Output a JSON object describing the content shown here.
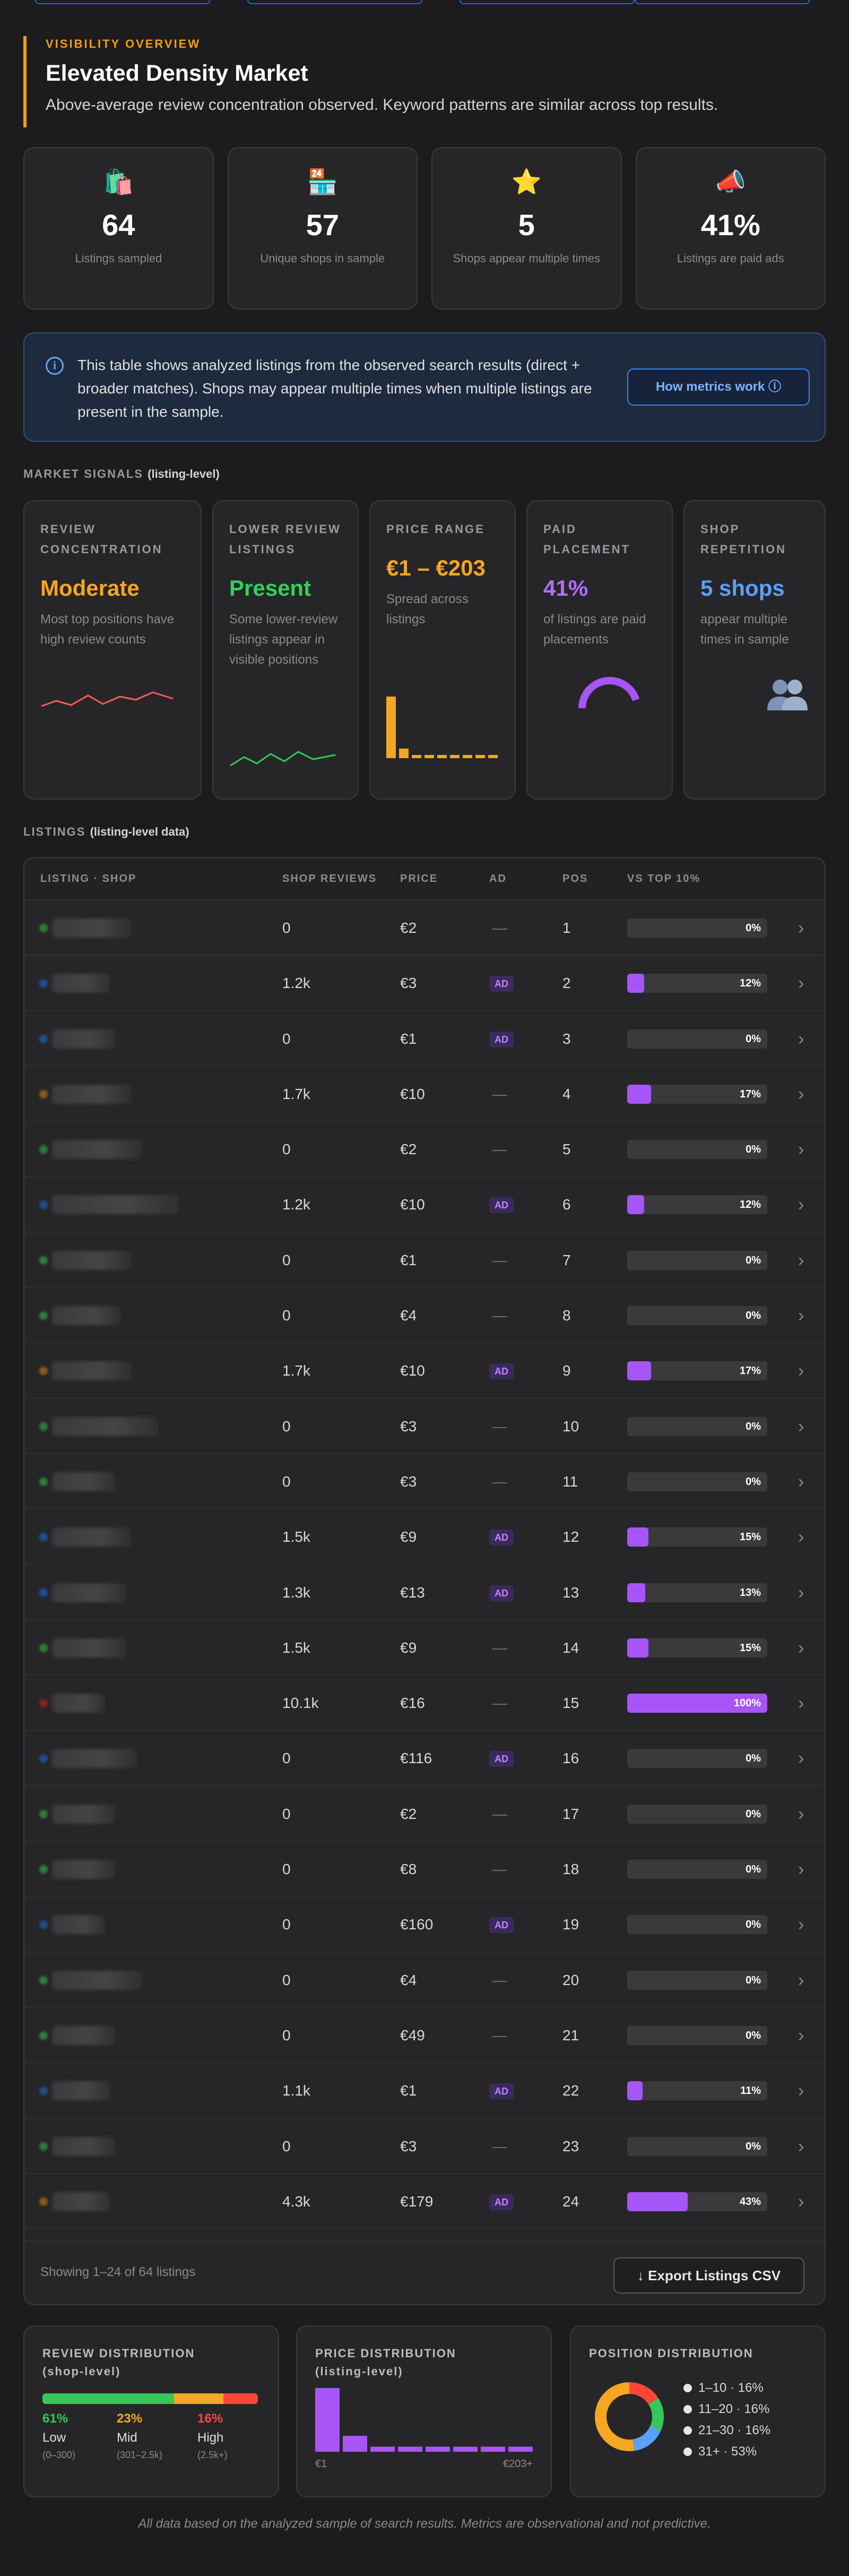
{
  "overview": {
    "kicker": "VISIBILITY OVERVIEW",
    "title": "Elevated Density Market",
    "subtitle": "Above-average review concentration observed. Keyword patterns are similar across top results."
  },
  "stats": [
    {
      "icon": "shopping-bag-icon",
      "glyph": "🛍️",
      "value": "64",
      "label": "Listings sampled"
    },
    {
      "icon": "shop-icon",
      "glyph": "🏪",
      "value": "57",
      "label": "Unique shops in sample"
    },
    {
      "icon": "star-icon",
      "glyph": "⭐",
      "value": "5",
      "label": "Shops appear multiple times"
    },
    {
      "icon": "megaphone-icon",
      "glyph": "📣",
      "value": "41%",
      "label": "Listings are paid ads"
    }
  ],
  "info": {
    "text": "This table shows analyzed listings from the observed search results (direct + broader matches). Shops may appear multiple times when multiple listings are present in the sample.",
    "button": "How metrics work ⓘ"
  },
  "signals_label": {
    "main": "MARKET SIGNALS",
    "sub": "(listing-level)"
  },
  "signals": [
    {
      "title": "REVIEW CONCENTRATION",
      "value": "Moderate",
      "color": "#f5a623",
      "desc": "Most top positions have high review counts",
      "graphic": "red-line"
    },
    {
      "title": "LOWER REVIEW LISTINGS",
      "value": "Present",
      "color": "#34d058",
      "desc": "Some lower-review listings appear in visible positions",
      "graphic": "green-line"
    },
    {
      "title": "PRICE RANGE",
      "value": "€1 – €203",
      "color": "#f5a623",
      "desc": "Spread across listings",
      "graphic": "price-bars"
    },
    {
      "title": "PAID PLACEMENT",
      "value": "41%",
      "color": "#b46cff",
      "desc": "of listings are paid placements",
      "graphic": "gauge",
      "fraction": 0.41
    },
    {
      "title": "SHOP REPETITION",
      "value": "5 shops",
      "color": "#5aa0ff",
      "desc": "appear multiple times in sample",
      "graphic": "people-icon"
    }
  ],
  "listings_label": {
    "main": "LISTINGS",
    "sub": "(listing-level data)"
  },
  "table": {
    "headers": [
      "LISTING · SHOP",
      "SHOP REVIEWS",
      "PRICE",
      "AD",
      "POS",
      "VS TOP 10%"
    ],
    "ad_label": "AD",
    "no_ad": "—",
    "rows": [
      {
        "reviews": "0",
        "price": "€2",
        "ad": false,
        "pos": "1",
        "pct": "0%",
        "frac": 0,
        "dot": "#2e7d32"
      },
      {
        "reviews": "1.2k",
        "price": "€3",
        "ad": true,
        "pos": "2",
        "pct": "12%",
        "frac": 0.12,
        "dot": "#1e4f8f"
      },
      {
        "reviews": "0",
        "price": "€1",
        "ad": true,
        "pos": "3",
        "pct": "0%",
        "frac": 0,
        "dot": "#1e4f8f"
      },
      {
        "reviews": "1.7k",
        "price": "€10",
        "ad": false,
        "pos": "4",
        "pct": "17%",
        "frac": 0.17,
        "dot": "#8a5a1a"
      },
      {
        "reviews": "0",
        "price": "€2",
        "ad": false,
        "pos": "5",
        "pct": "0%",
        "frac": 0,
        "dot": "#2e7d32"
      },
      {
        "reviews": "1.2k",
        "price": "€10",
        "ad": true,
        "pos": "6",
        "pct": "12%",
        "frac": 0.12,
        "dot": "#1e4f8f"
      },
      {
        "reviews": "0",
        "price": "€1",
        "ad": false,
        "pos": "7",
        "pct": "0%",
        "frac": 0,
        "dot": "#2e7d32"
      },
      {
        "reviews": "0",
        "price": "€4",
        "ad": false,
        "pos": "8",
        "pct": "0%",
        "frac": 0,
        "dot": "#2e7d32"
      },
      {
        "reviews": "1.7k",
        "price": "€10",
        "ad": true,
        "pos": "9",
        "pct": "17%",
        "frac": 0.17,
        "dot": "#8a5a1a"
      },
      {
        "reviews": "0",
        "price": "€3",
        "ad": false,
        "pos": "10",
        "pct": "0%",
        "frac": 0,
        "dot": "#2e7d32"
      },
      {
        "reviews": "0",
        "price": "€3",
        "ad": false,
        "pos": "11",
        "pct": "0%",
        "frac": 0,
        "dot": "#2e7d32"
      },
      {
        "reviews": "1.5k",
        "price": "€9",
        "ad": true,
        "pos": "12",
        "pct": "15%",
        "frac": 0.15,
        "dot": "#1e4f8f"
      },
      {
        "reviews": "1.3k",
        "price": "€13",
        "ad": true,
        "pos": "13",
        "pct": "13%",
        "frac": 0.13,
        "dot": "#1e4f8f"
      },
      {
        "reviews": "1.5k",
        "price": "€9",
        "ad": false,
        "pos": "14",
        "pct": "15%",
        "frac": 0.15,
        "dot": "#2e7d32"
      },
      {
        "reviews": "10.1k",
        "price": "€16",
        "ad": false,
        "pos": "15",
        "pct": "100%",
        "frac": 1,
        "dot": "#8b1e1e"
      },
      {
        "reviews": "0",
        "price": "€116",
        "ad": true,
        "pos": "16",
        "pct": "0%",
        "frac": 0,
        "dot": "#1e4f8f"
      },
      {
        "reviews": "0",
        "price": "€2",
        "ad": false,
        "pos": "17",
        "pct": "0%",
        "frac": 0,
        "dot": "#2e7d32"
      },
      {
        "reviews": "0",
        "price": "€8",
        "ad": false,
        "pos": "18",
        "pct": "0%",
        "frac": 0,
        "dot": "#2e7d32"
      },
      {
        "reviews": "0",
        "price": "€160",
        "ad": true,
        "pos": "19",
        "pct": "0%",
        "frac": 0,
        "dot": "#1e4f8f"
      },
      {
        "reviews": "0",
        "price": "€4",
        "ad": false,
        "pos": "20",
        "pct": "0%",
        "frac": 0,
        "dot": "#2e7d32"
      },
      {
        "reviews": "0",
        "price": "€49",
        "ad": false,
        "pos": "21",
        "pct": "0%",
        "frac": 0,
        "dot": "#2e7d32"
      },
      {
        "reviews": "1.1k",
        "price": "€1",
        "ad": true,
        "pos": "22",
        "pct": "11%",
        "frac": 0.11,
        "dot": "#1e4f8f"
      },
      {
        "reviews": "0",
        "price": "€3",
        "ad": false,
        "pos": "23",
        "pct": "0%",
        "frac": 0,
        "dot": "#2e7d32"
      },
      {
        "reviews": "4.3k",
        "price": "€179",
        "ad": true,
        "pos": "24",
        "pct": "43%",
        "frac": 0.43,
        "dot": "#8a5a1a"
      }
    ],
    "showing": "Showing 1–24 of 64 listings",
    "export": "↓ Export Listings CSV"
  },
  "distributions": {
    "review": {
      "title": "REVIEW DISTRIBUTION",
      "sub": "(shop-level)",
      "segments": [
        {
          "pct": "61%",
          "frac": 0.61,
          "color": "#34c759",
          "label": "Low",
          "range": "(0–300)"
        },
        {
          "pct": "23%",
          "frac": 0.23,
          "color": "#f5a623",
          "label": "Mid",
          "range": "(301–2.5k)"
        },
        {
          "pct": "16%",
          "frac": 0.16,
          "color": "#ff453a",
          "label": "High",
          "range": "(2.5k+)"
        }
      ]
    },
    "price": {
      "title": "PRICE DISTRIBUTION",
      "sub": "(listing-level)",
      "min_label": "€1",
      "max_label": "€203+",
      "values": [
        1,
        0.25,
        0.08,
        0.08,
        0.08,
        0.08,
        0.08,
        0.08
      ]
    },
    "position": {
      "title": "POSITION DISTRIBUTION",
      "buckets": [
        {
          "label": "1–10 · 16%",
          "frac": 0.16,
          "color": "#ff453a"
        },
        {
          "label": "11–20 · 16%",
          "frac": 0.16,
          "color": "#34c759"
        },
        {
          "label": "21–30 · 16%",
          "frac": 0.16,
          "color": "#5aa0ff"
        },
        {
          "label": "31+ · 53%",
          "frac": 0.53,
          "color": "#f5a623"
        }
      ]
    }
  },
  "footer_note": "All data based on the analyzed sample of search results. Metrics are observational and not predictive."
}
